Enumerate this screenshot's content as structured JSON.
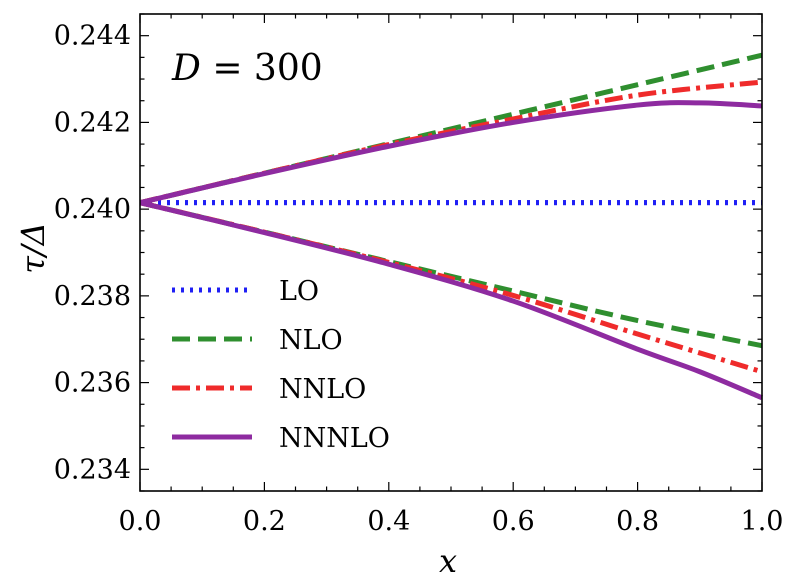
{
  "chart_data": {
    "type": "line",
    "title": "",
    "annotation": "D = 300",
    "annotation_parts": {
      "var": "D",
      "rest": " = 300"
    },
    "xlabel": "x",
    "ylabel": "τ/Δ",
    "xlim": [
      0.0,
      1.0
    ],
    "ylim": [
      0.2335,
      0.2445
    ],
    "xticks": [
      0.0,
      0.2,
      0.4,
      0.6,
      0.8,
      1.0
    ],
    "xtick_labels": [
      "0.0",
      "0.2",
      "0.4",
      "0.6",
      "0.8",
      "1.0"
    ],
    "yticks": [
      0.234,
      0.236,
      0.238,
      0.24,
      0.242,
      0.244
    ],
    "ytick_labels": [
      "0.234",
      "0.236",
      "0.238",
      "0.240",
      "0.242",
      "0.244"
    ],
    "legend_position": "center-left",
    "grid": false,
    "series": [
      {
        "name": "LO",
        "color": "#1f1ff5",
        "style": "dotted",
        "x": [
          0.0,
          1.0
        ],
        "upper": [
          0.24015,
          0.24015
        ],
        "lower": [
          0.24015,
          0.24015
        ]
      },
      {
        "name": "NLO",
        "color": "#2f8f2f",
        "style": "dashed",
        "x": [
          0.0,
          0.2,
          0.4,
          0.6,
          0.8,
          1.0
        ],
        "upper": [
          0.24015,
          0.24083,
          0.24151,
          0.24219,
          0.24287,
          0.24355
        ],
        "lower": [
          0.24015,
          0.23947,
          0.23879,
          0.23811,
          0.23743,
          0.23685
        ]
      },
      {
        "name": "NNLO",
        "color": "#ef2b2b",
        "style": "dashdot",
        "x": [
          0.0,
          0.2,
          0.4,
          0.6,
          0.8,
          1.0
        ],
        "upper": [
          0.24015,
          0.24083,
          0.24149,
          0.24208,
          0.24263,
          0.24293
        ],
        "lower": [
          0.24015,
          0.23947,
          0.23877,
          0.23801,
          0.23712,
          0.23625
        ]
      },
      {
        "name": "NNNLO",
        "color": "#8e2ba0",
        "style": "solid",
        "x": [
          0.0,
          0.2,
          0.4,
          0.6,
          0.8,
          0.9,
          1.0
        ],
        "upper": [
          0.24015,
          0.24082,
          0.24145,
          0.242,
          0.2424,
          0.24245,
          0.24238
        ],
        "lower": [
          0.24015,
          0.23946,
          0.23873,
          0.23788,
          0.23677,
          0.23625,
          0.23565
        ]
      }
    ]
  }
}
